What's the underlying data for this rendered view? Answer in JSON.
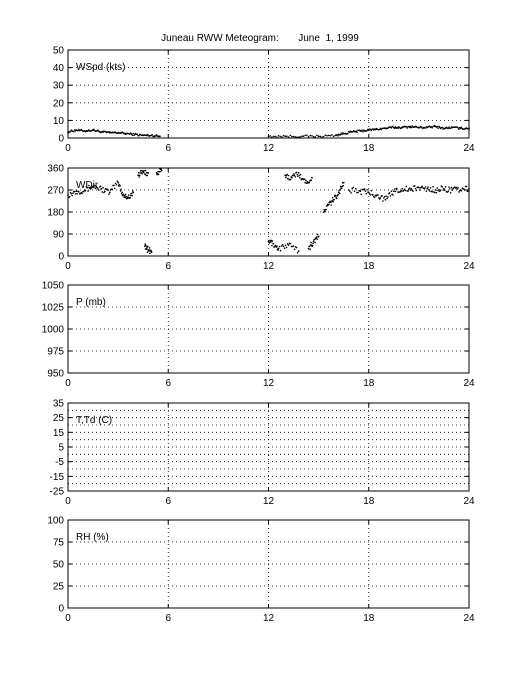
{
  "title": "Juneau RWW Meteogram:       June  1, 1999",
  "chart_data": [
    {
      "type": "scatter",
      "label": "WSpd (kts)",
      "xlim": [
        0,
        24
      ],
      "xticks": [
        0,
        6,
        12,
        18,
        24
      ],
      "ylim": [
        0,
        50
      ],
      "yticks": [
        0,
        10,
        20,
        30,
        40,
        50
      ],
      "grid": true,
      "segments": [
        {
          "x": [
            0.0,
            0.5,
            1.0,
            1.5,
            2.0,
            2.5,
            3.0,
            3.5,
            4.0,
            4.5,
            5.0,
            5.5
          ],
          "y": [
            3.5,
            4.5,
            4.0,
            4.5,
            3.5,
            3.0,
            3.0,
            2.5,
            2.0,
            1.5,
            1.5,
            1.0
          ]
        },
        {
          "x": [
            12.0,
            13.0,
            14.0,
            15.0,
            16.0,
            16.5,
            17.0,
            17.5,
            18.0,
            18.5,
            19.0,
            19.5,
            20.0,
            20.5,
            21.0,
            21.5,
            22.0,
            22.5,
            23.0,
            23.5,
            24.0
          ],
          "y": [
            1.0,
            1.0,
            1.0,
            1.0,
            1.5,
            2.5,
            3.5,
            4.0,
            4.5,
            5.0,
            5.5,
            6.0,
            6.0,
            6.5,
            6.0,
            6.0,
            6.5,
            5.5,
            6.0,
            5.5,
            5.5
          ]
        }
      ]
    },
    {
      "type": "scatter",
      "label": "WDir",
      "xlim": [
        0,
        24
      ],
      "xticks": [
        0,
        6,
        12,
        18,
        24
      ],
      "ylim": [
        0,
        360
      ],
      "yticks": [
        0,
        90,
        180,
        270,
        360
      ],
      "grid": true,
      "segments": [
        {
          "x": [
            0.0,
            0.5,
            1.0,
            1.5,
            2.0,
            2.5,
            3.0,
            3.3,
            3.6,
            3.9
          ],
          "y": [
            250,
            265,
            270,
            285,
            275,
            260,
            300,
            250,
            240,
            260
          ]
        },
        {
          "x": [
            4.2,
            4.5,
            4.8
          ],
          "y": [
            330,
            345,
            340
          ]
        },
        {
          "x": [
            4.6,
            4.8,
            5.0
          ],
          "y": [
            40,
            25,
            15
          ]
        },
        {
          "x": [
            5.3,
            5.6
          ],
          "y": [
            340,
            350
          ]
        },
        {
          "x": [
            12.0,
            12.3,
            12.6,
            13.2,
            13.8
          ],
          "y": [
            60,
            50,
            30,
            45,
            20
          ]
        },
        {
          "x": [
            13.0,
            13.4,
            13.8,
            14.2,
            14.6
          ],
          "y": [
            330,
            320,
            340,
            300,
            320
          ]
        },
        {
          "x": [
            14.4,
            14.7,
            15.0
          ],
          "y": [
            30,
            60,
            80
          ]
        },
        {
          "x": [
            15.3,
            15.6,
            15.9,
            16.2,
            16.5
          ],
          "y": [
            180,
            210,
            230,
            260,
            300
          ]
        },
        {
          "x": [
            16.8,
            17.5,
            18.0,
            18.5,
            19.0,
            19.5,
            20.0,
            20.5,
            21.0,
            21.5,
            22.0,
            22.5,
            23.0,
            23.5,
            24.0
          ],
          "y": [
            270,
            265,
            260,
            250,
            230,
            265,
            275,
            270,
            280,
            275,
            270,
            275,
            270,
            270,
            275
          ]
        }
      ]
    },
    {
      "type": "scatter",
      "label": "P (mb)",
      "xlim": [
        0,
        24
      ],
      "xticks": [
        0,
        6,
        12,
        18,
        24
      ],
      "ylim": [
        950,
        1050
      ],
      "yticks": [
        950,
        975,
        1000,
        1025,
        1050
      ],
      "grid": true,
      "segments": []
    },
    {
      "type": "scatter",
      "label": "T,Td (C)",
      "xlim": [
        0,
        24
      ],
      "xticks": [
        0,
        6,
        12,
        18,
        24
      ],
      "ylim": [
        -25,
        35
      ],
      "yticks": [
        -25,
        -15,
        -5,
        5,
        15,
        25,
        35
      ],
      "ytick_labels": [
        "-25",
        "-15",
        "-5",
        "5",
        "15",
        "25",
        "35"
      ],
      "minor_grid": [
        -20,
        -10,
        0,
        10,
        20,
        30
      ],
      "grid": true,
      "segments": []
    },
    {
      "type": "scatter",
      "label": "RH (%)",
      "xlim": [
        0,
        24
      ],
      "xticks": [
        0,
        6,
        12,
        18,
        24
      ],
      "ylim": [
        0,
        100
      ],
      "yticks": [
        0,
        25,
        50,
        75,
        100
      ],
      "grid": true,
      "segments": []
    }
  ]
}
